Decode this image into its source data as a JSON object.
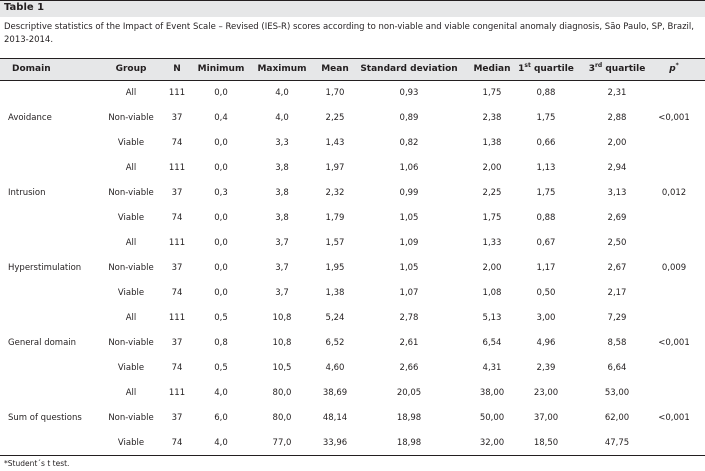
{
  "table": {
    "label": "Table 1",
    "caption": "Descriptive statistics of the Impact of Event Scale – Revised (IES-R) scores according to non-viable and viable congenital anomaly diagnosis, São Paulo, SP, Brazil, 2013-2014.",
    "headers": {
      "domain": "Domain",
      "group": "Group",
      "n": "N",
      "minimum": "Minimum",
      "maximum": "Maximum",
      "mean": "Mean",
      "sd": "Standard deviation",
      "median": "Median",
      "q1_num": "1",
      "q1_sup": "st",
      "q1_word": " quartile",
      "q3_num": "3",
      "q3_sup": "rd",
      "q3_word": " quartile",
      "p": "p",
      "p_sup": "*"
    },
    "sections": [
      {
        "domain": "Avoidance",
        "p": "<0,001",
        "rows": [
          {
            "group": "All",
            "n": "111",
            "min": "0,0",
            "max": "4,0",
            "mean": "1,70",
            "sd": "0,93",
            "median": "1,75",
            "q1": "0,88",
            "q3": "2,31"
          },
          {
            "group": "Non-viable",
            "n": "37",
            "min": "0,4",
            "max": "4,0",
            "mean": "2,25",
            "sd": "0,89",
            "median": "2,38",
            "q1": "1,75",
            "q3": "2,88"
          },
          {
            "group": "Viable",
            "n": "74",
            "min": "0,0",
            "max": "3,3",
            "mean": "1,43",
            "sd": "0,82",
            "median": "1,38",
            "q1": "0,66",
            "q3": "2,00"
          }
        ]
      },
      {
        "domain": "Intrusion",
        "p": "0,012",
        "rows": [
          {
            "group": "All",
            "n": "111",
            "min": "0,0",
            "max": "3,8",
            "mean": "1,97",
            "sd": "1,06",
            "median": "2,00",
            "q1": "1,13",
            "q3": "2,94"
          },
          {
            "group": "Non-viable",
            "n": "37",
            "min": "0,3",
            "max": "3,8",
            "mean": "2,32",
            "sd": "0,99",
            "median": "2,25",
            "q1": "1,75",
            "q3": "3,13"
          },
          {
            "group": "Viable",
            "n": "74",
            "min": "0,0",
            "max": "3,8",
            "mean": "1,79",
            "sd": "1,05",
            "median": "1,75",
            "q1": "0,88",
            "q3": "2,69"
          }
        ]
      },
      {
        "domain": "Hyperstimulation",
        "p": "0,009",
        "rows": [
          {
            "group": "All",
            "n": "111",
            "min": "0,0",
            "max": "3,7",
            "mean": "1,57",
            "sd": "1,09",
            "median": "1,33",
            "q1": "0,67",
            "q3": "2,50"
          },
          {
            "group": "Non-viable",
            "n": "37",
            "min": "0,0",
            "max": "3,7",
            "mean": "1,95",
            "sd": "1,05",
            "median": "2,00",
            "q1": "1,17",
            "q3": "2,67"
          },
          {
            "group": "Viable",
            "n": "74",
            "min": "0,0",
            "max": "3,7",
            "mean": "1,38",
            "sd": "1,07",
            "median": "1,08",
            "q1": "0,50",
            "q3": "2,17"
          }
        ]
      },
      {
        "domain": "General domain",
        "p": "<0,001",
        "rows": [
          {
            "group": "All",
            "n": "111",
            "min": "0,5",
            "max": "10,8",
            "mean": "5,24",
            "sd": "2,78",
            "median": "5,13",
            "q1": "3,00",
            "q3": "7,29"
          },
          {
            "group": "Non-viable",
            "n": "37",
            "min": "0,8",
            "max": "10,8",
            "mean": "6,52",
            "sd": "2,61",
            "median": "6,54",
            "q1": "4,96",
            "q3": "8,58"
          },
          {
            "group": "Viable",
            "n": "74",
            "min": "0,5",
            "max": "10,5",
            "mean": "4,60",
            "sd": "2,66",
            "median": "4,31",
            "q1": "2,39",
            "q3": "6,64"
          }
        ]
      },
      {
        "domain": "Sum of questions",
        "p": "<0,001",
        "rows": [
          {
            "group": "All",
            "n": "111",
            "min": "4,0",
            "max": "80,0",
            "mean": "38,69",
            "sd": "20,05",
            "median": "38,00",
            "q1": "23,00",
            "q3": "53,00"
          },
          {
            "group": "Non-viable",
            "n": "37",
            "min": "6,0",
            "max": "80,0",
            "mean": "48,14",
            "sd": "18,98",
            "median": "50,00",
            "q1": "37,00",
            "q3": "62,00"
          },
          {
            "group": "Viable",
            "n": "74",
            "min": "4,0",
            "max": "77,0",
            "mean": "33,96",
            "sd": "18,98",
            "median": "32,00",
            "q1": "18,50",
            "q3": "47,75"
          }
        ]
      }
    ],
    "footnote": "*Student´s t test."
  }
}
